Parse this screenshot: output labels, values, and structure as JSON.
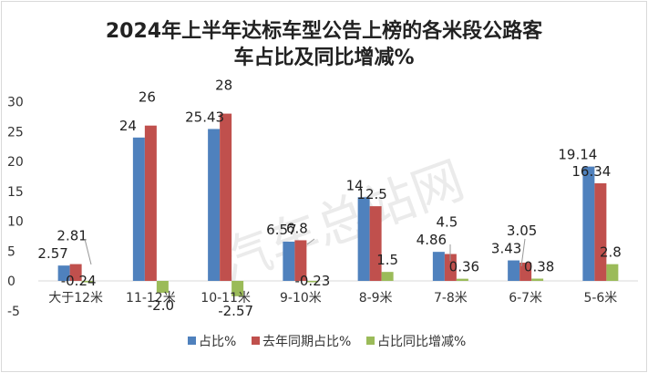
{
  "chart_data": {
    "type": "bar",
    "title_line1": "2024年上半年达标车型公告上榜的各米段公路客",
    "title_line2": "车占比及同比增减%",
    "categories": [
      "大于12米",
      "11-12米",
      "10-11米",
      "9-10米",
      "8-9米",
      "7-8米",
      "6-7米",
      "5-6米"
    ],
    "series": [
      {
        "name": "占比%",
        "color": "#4f81bd",
        "values": [
          2.57,
          24,
          25.43,
          6.57,
          14,
          4.86,
          3.43,
          19.14
        ],
        "labels": [
          "2.57",
          "24",
          "25.43",
          "6.57",
          "14",
          "4.86",
          "3.43",
          "19.14"
        ]
      },
      {
        "name": "去年同期占比%",
        "color": "#c0504d",
        "values": [
          2.81,
          26,
          28,
          6.8,
          12.5,
          4.5,
          3.05,
          16.34
        ],
        "labels": [
          "2.81",
          "26",
          "28",
          "6.8",
          "12.5",
          "4.5",
          "3.05",
          "16.34"
        ]
      },
      {
        "name": "占比同比增减%",
        "color": "#9bbb59",
        "values": [
          -0.24,
          -2.0,
          -2.57,
          -0.23,
          1.5,
          0.36,
          0.38,
          2.8
        ],
        "labels": [
          "-0.24",
          "-2.0",
          "-2.57",
          "-0.23",
          "1.5",
          "0.36",
          "0.38",
          "2.8"
        ]
      }
    ],
    "yticks": [
      "30",
      "25",
      "20",
      "15",
      "10",
      "5",
      "0",
      "-5"
    ],
    "ylim": [
      -5,
      30
    ],
    "legend_position": "bottom",
    "grid": false,
    "watermark": "汽车总站网"
  }
}
